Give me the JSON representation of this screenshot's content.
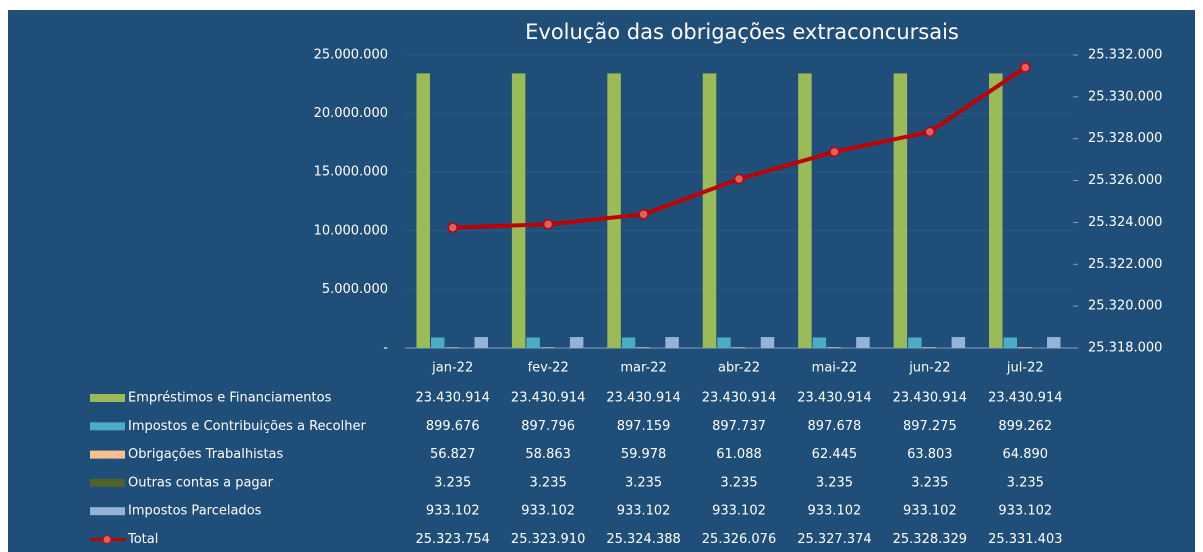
{
  "chart_data": {
    "type": "bar",
    "title": "Evolução das obrigações extraconcursais",
    "categories": [
      "jan-22",
      "fev-22",
      "mar-22",
      "abr-22",
      "mai-22",
      "jun-22",
      "jul-22"
    ],
    "series": [
      {
        "name": "Empréstimos e Financiamentos",
        "color": "#9bbb59",
        "values": [
          23430914,
          23430914,
          23430914,
          23430914,
          23430914,
          23430914,
          23430914
        ],
        "value_labels": [
          "23.430.914",
          "23.430.914",
          "23.430.914",
          "23.430.914",
          "23.430.914",
          "23.430.914",
          "23.430.914"
        ]
      },
      {
        "name": "Impostos e Contribuições a Recolher",
        "color": "#4bacc6",
        "values": [
          899676,
          897796,
          897159,
          897737,
          897678,
          897275,
          899262
        ],
        "value_labels": [
          "899.676",
          "897.796",
          "897.159",
          "897.737",
          "897.678",
          "897.275",
          "899.262"
        ]
      },
      {
        "name": "Obrigações Trabalhistas",
        "color": "#fac090",
        "values": [
          56827,
          58863,
          59978,
          61088,
          62445,
          63803,
          64890
        ],
        "value_labels": [
          "56.827",
          "58.863",
          "59.978",
          "61.088",
          "62.445",
          "63.803",
          "64.890"
        ]
      },
      {
        "name": "Outras contas a pagar",
        "color": "#4f6228",
        "values": [
          3235,
          3235,
          3235,
          3235,
          3235,
          3235,
          3235
        ],
        "value_labels": [
          "3.235",
          "3.235",
          "3.235",
          "3.235",
          "3.235",
          "3.235",
          "3.235"
        ]
      },
      {
        "name": "Impostos Parcelados",
        "color": "#95b3d7",
        "values": [
          933102,
          933102,
          933102,
          933102,
          933102,
          933102,
          933102
        ],
        "value_labels": [
          "933.102",
          "933.102",
          "933.102",
          "933.102",
          "933.102",
          "933.102",
          "933.102"
        ]
      },
      {
        "name": "Total",
        "color": "#c00000",
        "type": "line",
        "axis": "y2",
        "values": [
          25323754,
          25323910,
          25324388,
          25326076,
          25327374,
          25328329,
          25331403
        ],
        "value_labels": [
          "25.323.754",
          "25.323.910",
          "25.324.388",
          "25.326.076",
          "25.327.374",
          "25.328.329",
          "25.331.403"
        ]
      }
    ],
    "ylim": [
      0,
      25000000
    ],
    "yticks": [
      {
        "value": 0,
        "label": "-"
      },
      {
        "value": 5000000,
        "label": "5.000.000"
      },
      {
        "value": 10000000,
        "label": "10.000.000"
      },
      {
        "value": 15000000,
        "label": "15.000.000"
      },
      {
        "value": 20000000,
        "label": "20.000.000"
      },
      {
        "value": 25000000,
        "label": "25.000.000"
      }
    ],
    "y2lim": [
      25318000,
      25332000
    ],
    "y2ticks": [
      {
        "value": 25318000,
        "label": "25.318.000"
      },
      {
        "value": 25320000,
        "label": "25.320.000"
      },
      {
        "value": 25322000,
        "label": "25.322.000"
      },
      {
        "value": 25324000,
        "label": "25.324.000"
      },
      {
        "value": 25326000,
        "label": "25.326.000"
      },
      {
        "value": 25328000,
        "label": "25.328.000"
      },
      {
        "value": 25330000,
        "label": "25.330.000"
      },
      {
        "value": 25332000,
        "label": "25.332.000"
      }
    ],
    "grid": true
  }
}
